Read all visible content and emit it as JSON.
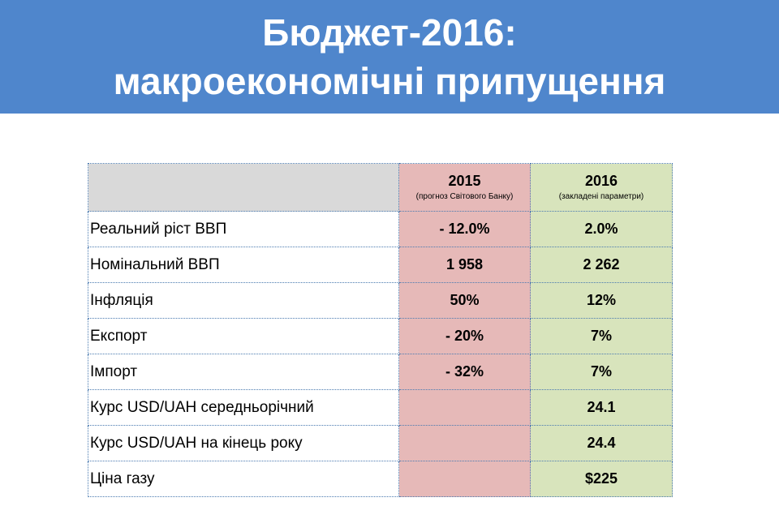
{
  "header": {
    "title_line1": "Бюджет-2016:",
    "title_line2": "макроекономічні припущення",
    "background_color": "#4f86cc"
  },
  "table": {
    "columns": [
      {
        "year": "",
        "note": ""
      },
      {
        "year": "2015",
        "note": "(прогноз Світового Банку)",
        "color": "#e6b9b8"
      },
      {
        "year": "2016",
        "note": "(закладені параметри)",
        "color": "#d8e4bc"
      }
    ],
    "rows": [
      {
        "label": "Реальний ріст ВВП",
        "v2015": "- 12.0%",
        "v2016": "2.0%"
      },
      {
        "label": "Номінальний ВВП",
        "v2015": "1 958",
        "v2016": "2 262"
      },
      {
        "label": "Інфляція",
        "v2015": "50%",
        "v2016": "12%"
      },
      {
        "label": "Експорт",
        "v2015": "- 20%",
        "v2016": "7%"
      },
      {
        "label": "Імпорт",
        "v2015": "- 32%",
        "v2016": "7%"
      },
      {
        "label": "Курс USD/UAH середньорічний",
        "v2015": "",
        "v2016": "24.1"
      },
      {
        "label": "Курс USD/UAH на кінець року",
        "v2015": "",
        "v2016": "24.4"
      },
      {
        "label": "Ціна газу",
        "v2015": "",
        "v2016": "$225"
      }
    ]
  }
}
